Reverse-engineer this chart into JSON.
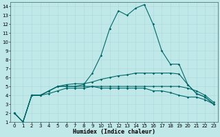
{
  "xlabel": "Humidex (Indice chaleur)",
  "bg_color": "#c0e8e8",
  "line_color": "#006868",
  "x": [
    0,
    1,
    2,
    3,
    4,
    5,
    6,
    7,
    8,
    9,
    10,
    11,
    12,
    13,
    14,
    15,
    16,
    17,
    18,
    19,
    20,
    21,
    22,
    23
  ],
  "line1": [
    2,
    1,
    4,
    4,
    4.5,
    5,
    5,
    5,
    5.2,
    6.5,
    8.5,
    11.5,
    13.5,
    13.0,
    13.8,
    14.2,
    12.0,
    9.0,
    7.5,
    7.5,
    5.2,
    4.2,
    3.8,
    3.0
  ],
  "line2": [
    2,
    1,
    4,
    4,
    4.5,
    5,
    5.2,
    5.3,
    5.3,
    5.5,
    5.8,
    6.0,
    6.2,
    6.3,
    6.5,
    6.5,
    6.5,
    6.5,
    6.5,
    6.4,
    5.2,
    4.2,
    3.8,
    3.0
  ],
  "line3": [
    2,
    1,
    4,
    4,
    4.5,
    5,
    5.0,
    5.0,
    5.0,
    5.0,
    5.0,
    5.0,
    5.0,
    5.0,
    5.0,
    5.0,
    5.0,
    5.0,
    5.0,
    5.0,
    4.8,
    4.5,
    4.0,
    3.2
  ],
  "line4": [
    2,
    1,
    4,
    4,
    4.2,
    4.5,
    4.8,
    4.8,
    4.8,
    5.0,
    4.8,
    4.8,
    4.8,
    4.8,
    4.8,
    4.8,
    4.5,
    4.5,
    4.3,
    4.0,
    3.8,
    3.8,
    3.5,
    3.0
  ],
  "xlim": [
    -0.5,
    23.5
  ],
  "ylim": [
    1,
    14.5
  ],
  "yticks": [
    1,
    2,
    3,
    4,
    5,
    6,
    7,
    8,
    9,
    10,
    11,
    12,
    13,
    14
  ],
  "xticks": [
    0,
    1,
    2,
    3,
    4,
    5,
    6,
    7,
    8,
    9,
    10,
    11,
    12,
    13,
    14,
    15,
    16,
    17,
    18,
    19,
    20,
    21,
    22,
    23
  ],
  "tick_fontsize": 5.0,
  "xlabel_fontsize": 6.0
}
